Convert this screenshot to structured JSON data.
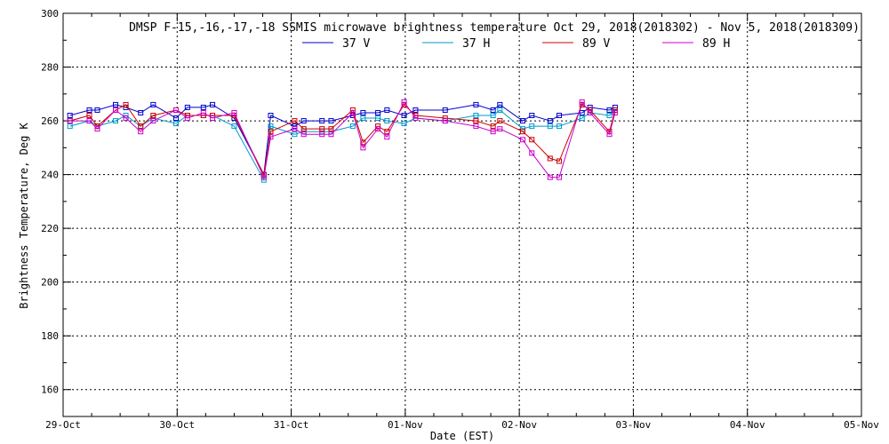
{
  "chart_data": {
    "type": "line",
    "title": "DMSP F-15,-16,-17,-18 SSMIS microwave brightness temperature Oct 29, 2018(2018302) - Nov  5, 2018(2018309)",
    "xlabel": "Date (EST)",
    "ylabel": "Brightness Temperature, Deg K",
    "xlim": [
      0,
      7
    ],
    "ylim": [
      150,
      300
    ],
    "xticks": [
      {
        "v": 0,
        "label": "29-Oct"
      },
      {
        "v": 1,
        "label": "30-Oct"
      },
      {
        "v": 2,
        "label": "31-Oct"
      },
      {
        "v": 3,
        "label": "01-Nov"
      },
      {
        "v": 4,
        "label": "02-Nov"
      },
      {
        "v": 5,
        "label": "03-Nov"
      },
      {
        "v": 6,
        "label": "04-Nov"
      },
      {
        "v": 7,
        "label": "05-Nov"
      }
    ],
    "yticks": [
      {
        "v": 160,
        "label": "160"
      },
      {
        "v": 180,
        "label": "180"
      },
      {
        "v": 200,
        "label": "200"
      },
      {
        "v": 220,
        "label": "220"
      },
      {
        "v": 240,
        "label": "240"
      },
      {
        "v": 260,
        "label": "260"
      },
      {
        "v": 280,
        "label": "280"
      },
      {
        "v": 300,
        "label": "300"
      }
    ],
    "grid": true,
    "legend_position": "top",
    "series": [
      {
        "name": "37 V",
        "color": "#0000cc",
        "points": [
          [
            0.06,
            262
          ],
          [
            0.23,
            264
          ],
          [
            0.3,
            264
          ],
          [
            0.46,
            266
          ],
          [
            0.55,
            265
          ],
          [
            0.68,
            263
          ],
          [
            0.79,
            266
          ],
          [
            0.99,
            261
          ],
          [
            1.09,
            265
          ],
          [
            1.23,
            265
          ],
          [
            1.31,
            266
          ],
          [
            1.5,
            261
          ],
          [
            1.76,
            240
          ],
          [
            1.82,
            262
          ],
          [
            2.03,
            258
          ],
          [
            2.11,
            260
          ],
          [
            2.27,
            260
          ],
          [
            2.35,
            260
          ],
          [
            2.54,
            262
          ],
          [
            2.63,
            263
          ],
          [
            2.76,
            263
          ],
          [
            2.84,
            264
          ],
          [
            2.99,
            262
          ],
          [
            3.09,
            264
          ],
          [
            3.35,
            264
          ],
          [
            3.62,
            266
          ],
          [
            3.77,
            264
          ],
          [
            3.83,
            266
          ],
          [
            4.03,
            260
          ],
          [
            4.11,
            262
          ],
          [
            4.27,
            260
          ],
          [
            4.35,
            262
          ],
          [
            4.55,
            263
          ],
          [
            4.62,
            265
          ],
          [
            4.79,
            264
          ],
          [
            4.84,
            265
          ]
        ]
      },
      {
        "name": "37 H",
        "color": "#0099cc",
        "points": [
          [
            0.06,
            258
          ],
          [
            0.23,
            260
          ],
          [
            0.3,
            258
          ],
          [
            0.46,
            260
          ],
          [
            0.55,
            262
          ],
          [
            0.68,
            258
          ],
          [
            0.79,
            261
          ],
          [
            0.99,
            259
          ],
          [
            1.09,
            262
          ],
          [
            1.23,
            262
          ],
          [
            1.31,
            262
          ],
          [
            1.5,
            258
          ],
          [
            1.76,
            238
          ],
          [
            1.82,
            258
          ],
          [
            2.03,
            255
          ],
          [
            2.11,
            256
          ],
          [
            2.27,
            256
          ],
          [
            2.35,
            256
          ],
          [
            2.54,
            258
          ],
          [
            2.63,
            261
          ],
          [
            2.76,
            261
          ],
          [
            2.84,
            260
          ],
          [
            2.99,
            259
          ],
          [
            3.09,
            261
          ],
          [
            3.35,
            260
          ],
          [
            3.62,
            262
          ],
          [
            3.77,
            262
          ],
          [
            3.83,
            264
          ],
          [
            4.03,
            257
          ],
          [
            4.11,
            258
          ],
          [
            4.27,
            258
          ],
          [
            4.35,
            258
          ],
          [
            4.55,
            261
          ],
          [
            4.62,
            263
          ],
          [
            4.79,
            262
          ],
          [
            4.84,
            264
          ]
        ]
      },
      {
        "name": "89 V",
        "color": "#cc0000",
        "points": [
          [
            0.06,
            260
          ],
          [
            0.23,
            262
          ],
          [
            0.3,
            258
          ],
          [
            0.46,
            264
          ],
          [
            0.55,
            266
          ],
          [
            0.68,
            258
          ],
          [
            0.79,
            262
          ],
          [
            0.99,
            264
          ],
          [
            1.09,
            262
          ],
          [
            1.23,
            262
          ],
          [
            1.31,
            262
          ],
          [
            1.5,
            262
          ],
          [
            1.76,
            240
          ],
          [
            1.82,
            256
          ],
          [
            2.03,
            260
          ],
          [
            2.11,
            257
          ],
          [
            2.27,
            257
          ],
          [
            2.35,
            257
          ],
          [
            2.54,
            264
          ],
          [
            2.63,
            252
          ],
          [
            2.76,
            258
          ],
          [
            2.84,
            256
          ],
          [
            2.99,
            266
          ],
          [
            3.09,
            262
          ],
          [
            3.35,
            261
          ],
          [
            3.62,
            260
          ],
          [
            3.77,
            258
          ],
          [
            3.83,
            260
          ],
          [
            4.03,
            256
          ],
          [
            4.11,
            253
          ],
          [
            4.27,
            246
          ],
          [
            4.35,
            245
          ],
          [
            4.55,
            266
          ],
          [
            4.62,
            264
          ],
          [
            4.79,
            256
          ],
          [
            4.84,
            264
          ]
        ]
      },
      {
        "name": "89 H",
        "color": "#cc00cc",
        "points": [
          [
            0.06,
            260
          ],
          [
            0.23,
            260
          ],
          [
            0.3,
            257
          ],
          [
            0.46,
            264
          ],
          [
            0.55,
            261
          ],
          [
            0.68,
            256
          ],
          [
            0.79,
            260
          ],
          [
            0.99,
            264
          ],
          [
            1.09,
            261
          ],
          [
            1.23,
            263
          ],
          [
            1.31,
            261
          ],
          [
            1.5,
            263
          ],
          [
            1.76,
            239
          ],
          [
            1.82,
            254
          ],
          [
            2.03,
            257
          ],
          [
            2.11,
            255
          ],
          [
            2.27,
            255
          ],
          [
            2.35,
            255
          ],
          [
            2.54,
            263
          ],
          [
            2.63,
            250
          ],
          [
            2.76,
            257
          ],
          [
            2.84,
            254
          ],
          [
            2.99,
            267
          ],
          [
            3.09,
            261
          ],
          [
            3.35,
            260
          ],
          [
            3.62,
            258
          ],
          [
            3.77,
            256
          ],
          [
            3.83,
            257
          ],
          [
            4.03,
            253
          ],
          [
            4.11,
            248
          ],
          [
            4.27,
            239
          ],
          [
            4.35,
            239
          ],
          [
            4.55,
            267
          ],
          [
            4.62,
            263
          ],
          [
            4.79,
            255
          ],
          [
            4.84,
            263
          ]
        ]
      }
    ]
  }
}
